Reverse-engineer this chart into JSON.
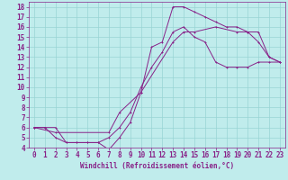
{
  "bg_color": "#c0ecec",
  "grid_color": "#98d4d4",
  "line_color": "#882288",
  "xlim": [
    -0.5,
    23.5
  ],
  "ylim": [
    4,
    18.5
  ],
  "xlabel": "Windchill (Refroidissement éolien,°C)",
  "xticks": [
    0,
    1,
    2,
    3,
    4,
    5,
    6,
    7,
    8,
    9,
    10,
    11,
    12,
    13,
    14,
    15,
    16,
    17,
    18,
    19,
    20,
    21,
    22,
    23
  ],
  "yticks": [
    4,
    5,
    6,
    7,
    8,
    9,
    10,
    11,
    12,
    13,
    14,
    15,
    16,
    17,
    18
  ],
  "line1_x": [
    0,
    1,
    2,
    3,
    4,
    5,
    6,
    7,
    8,
    9,
    10,
    11,
    12,
    13,
    14,
    15,
    16,
    17,
    18,
    19,
    20,
    21,
    22,
    23
  ],
  "line1_y": [
    6.0,
    6.0,
    6.0,
    4.5,
    4.5,
    4.5,
    4.5,
    3.8,
    5.0,
    6.5,
    9.5,
    14.0,
    14.5,
    18.0,
    18.0,
    17.5,
    17.0,
    16.5,
    16.0,
    16.0,
    15.5,
    14.5,
    13.0,
    12.5
  ],
  "line2_x": [
    0,
    1,
    2,
    3,
    4,
    5,
    6,
    7,
    8,
    9,
    10,
    11,
    12,
    13,
    14,
    15,
    16,
    17,
    18,
    19,
    20,
    21,
    22,
    23
  ],
  "line2_y": [
    6.0,
    6.0,
    5.0,
    4.5,
    4.5,
    4.5,
    4.5,
    5.0,
    6.0,
    7.5,
    10.0,
    12.0,
    13.5,
    15.5,
    16.0,
    15.0,
    14.5,
    12.5,
    12.0,
    12.0,
    12.0,
    12.5,
    12.5,
    12.5
  ],
  "line3_x": [
    0,
    2,
    7,
    8,
    10,
    13,
    14,
    15,
    17,
    19,
    20,
    21,
    22,
    23
  ],
  "line3_y": [
    6.0,
    5.5,
    5.5,
    7.5,
    9.5,
    14.5,
    15.5,
    15.5,
    16.0,
    15.5,
    15.5,
    15.5,
    13.0,
    12.5
  ],
  "tick_labelsize": 5.5,
  "xlabel_fontsize": 5.5,
  "linewidth": 0.7,
  "markersize": 2.0
}
